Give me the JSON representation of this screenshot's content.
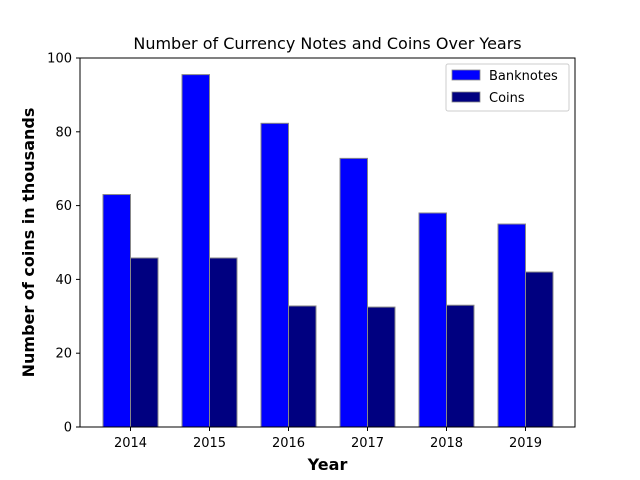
{
  "chart_data": {
    "type": "bar",
    "title": "Number of Currency Notes and Coins Over Years",
    "xlabel": "Year",
    "ylabel": "Number of coins in thousands",
    "categories": [
      "2014",
      "2015",
      "2016",
      "2017",
      "2018",
      "2019"
    ],
    "series": [
      {
        "name": "Banknotes",
        "values": [
          63,
          95.5,
          82.3,
          72.8,
          58,
          55
        ],
        "color": "#0000ff"
      },
      {
        "name": "Coins",
        "values": [
          45.8,
          45.8,
          32.8,
          32.5,
          33,
          42
        ],
        "color": "#000080"
      }
    ],
    "ylim": [
      0,
      100
    ],
    "yticks": [
      0,
      20,
      40,
      60,
      80,
      100
    ],
    "grid": false,
    "legend_position": "top-right"
  }
}
